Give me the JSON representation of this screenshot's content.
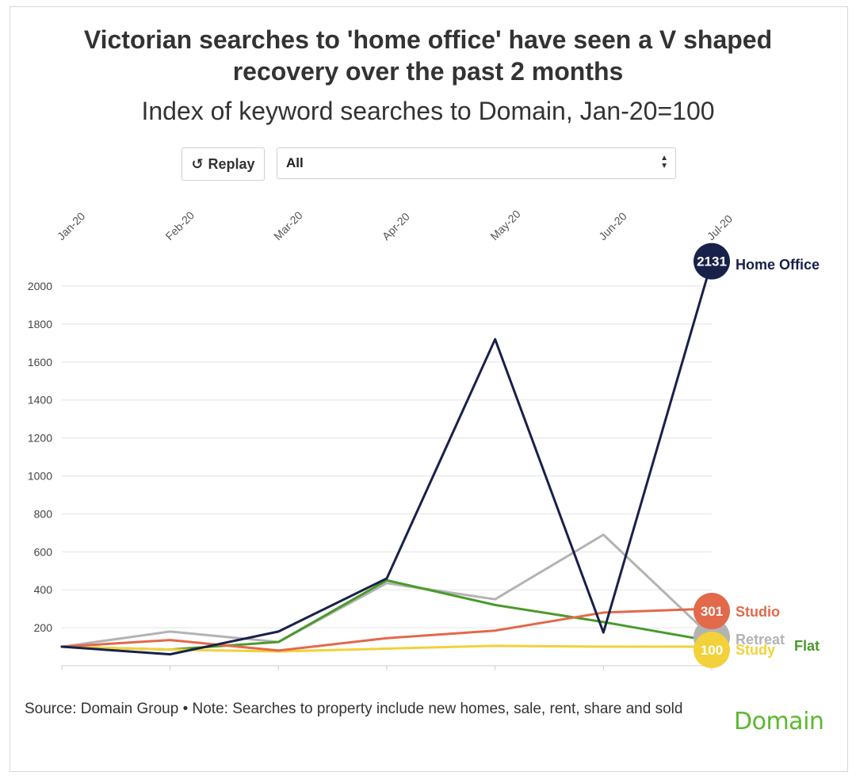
{
  "header": {
    "title_line1": "Victorian searches to 'home office' have seen a V shaped",
    "title_line2": "recovery over the past 2 months",
    "subtitle": "Index of keyword searches to Domain, Jan-20=100"
  },
  "controls": {
    "replay_label": "Replay",
    "select_value": "All"
  },
  "footer": {
    "source_note": "Source: Domain Group • Note: Searches to property include new homes, sale, rent, share and sold",
    "logo_text": "Domain"
  },
  "chart_data": {
    "type": "line",
    "x": [
      "Jan-20",
      "Feb-20",
      "Mar-20",
      "Apr-20",
      "May-20",
      "Jun-20",
      "Jul-20"
    ],
    "ylim": [
      0,
      2131
    ],
    "yticks": [
      200,
      400,
      600,
      800,
      1000,
      1200,
      1400,
      1600,
      1800,
      2000
    ],
    "grid": true,
    "legend": "end-labels",
    "series": [
      {
        "name": "Retreat",
        "color": "#b3b3b3",
        "values": [
          100,
          180,
          125,
          435,
          350,
          690,
          150
        ],
        "end_label": ""
      },
      {
        "name": "Flat",
        "color": "#4a9a2a",
        "values": [
          100,
          85,
          125,
          450,
          320,
          230,
          130
        ],
        "end_label": ""
      },
      {
        "name": "Study",
        "color": "#f2d13a",
        "values": [
          100,
          85,
          75,
          90,
          105,
          100,
          100
        ],
        "end_label": "100"
      },
      {
        "name": "Studio",
        "color": "#e2694a",
        "values": [
          100,
          135,
          80,
          145,
          185,
          280,
          301
        ],
        "end_label": "301"
      },
      {
        "name": "Home Office",
        "color": "#18214a",
        "values": [
          100,
          60,
          180,
          460,
          1720,
          175,
          2131
        ],
        "end_label": "2131"
      }
    ]
  }
}
